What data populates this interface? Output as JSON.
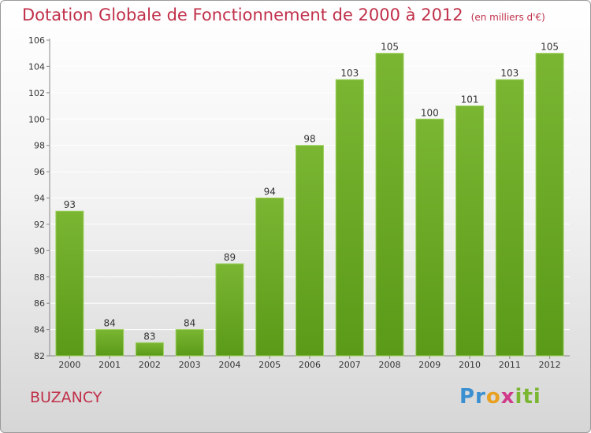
{
  "title": "Dotation Globale de Fonctionnement de 2000 à 2012",
  "unit": "(en milliers d'€)",
  "commune": "BUZANCY",
  "brand": "Proxiti",
  "colors": {
    "bar": "#7ab632",
    "bar_dark": "#5a9a18",
    "title": "#c0304a"
  },
  "chart_data": {
    "type": "bar",
    "title": "Dotation Globale de Fonctionnement de 2000 à 2012",
    "subtitle": "(en milliers d'€)",
    "categories": [
      "2000",
      "2001",
      "2002",
      "2003",
      "2004",
      "2005",
      "2006",
      "2007",
      "2008",
      "2009",
      "2010",
      "2011",
      "2012"
    ],
    "values": [
      93,
      84,
      83,
      84,
      89,
      94,
      98,
      103,
      105,
      100,
      101,
      103,
      105
    ],
    "ylim": [
      82,
      106
    ],
    "yticks": [
      82,
      84,
      86,
      88,
      90,
      92,
      94,
      96,
      98,
      100,
      102,
      104,
      106
    ],
    "grid": true,
    "xlabel": "",
    "ylabel": ""
  }
}
